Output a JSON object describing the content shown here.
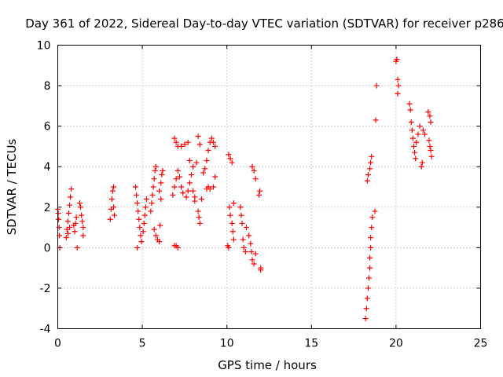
{
  "chart_data": {
    "type": "scatter",
    "title": "Day 361 of 2022, Sidereal Day-to-day VTEC variation (SDTVAR) for receiver p286",
    "xlabel": "GPS time / hours",
    "ylabel": "SDTVAR / TECUs",
    "xlim": [
      0,
      25
    ],
    "ylim": [
      -4,
      10
    ],
    "x_ticks": [
      0,
      5,
      10,
      15,
      20,
      25
    ],
    "y_ticks": [
      -4,
      -2,
      0,
      2,
      4,
      6,
      8,
      10
    ],
    "x_tick_labels": [
      "0",
      "5",
      "10",
      "15",
      "20",
      "25"
    ],
    "y_tick_labels": [
      "-4",
      "-2",
      "0",
      "2",
      "4",
      "6",
      "8",
      "10"
    ],
    "grid": true,
    "marker": "+",
    "marker_color": "#ff0000",
    "series": [
      {
        "name": "p286",
        "points": [
          [
            0.0,
            1.9
          ],
          [
            0.03,
            1.7
          ],
          [
            0.05,
            1.4
          ],
          [
            0.08,
            1.0
          ],
          [
            0.1,
            0.6
          ],
          [
            0.12,
            0.0
          ],
          [
            0.5,
            0.5
          ],
          [
            0.55,
            0.9
          ],
          [
            0.6,
            1.3
          ],
          [
            0.65,
            1.7
          ],
          [
            0.7,
            2.1
          ],
          [
            0.75,
            2.5
          ],
          [
            0.8,
            2.9
          ],
          [
            0.6,
            0.7
          ],
          [
            0.7,
            1.0
          ],
          [
            0.95,
            1.1
          ],
          [
            1.0,
            0.8
          ],
          [
            1.05,
            1.2
          ],
          [
            1.1,
            1.5
          ],
          [
            1.15,
            0.0
          ],
          [
            1.3,
            2.2
          ],
          [
            1.35,
            2.0
          ],
          [
            1.4,
            1.6
          ],
          [
            1.45,
            1.3
          ],
          [
            1.5,
            1.0
          ],
          [
            1.5,
            0.6
          ],
          [
            3.1,
            1.4
          ],
          [
            3.15,
            1.9
          ],
          [
            3.2,
            2.4
          ],
          [
            3.25,
            2.8
          ],
          [
            3.3,
            3.0
          ],
          [
            3.3,
            2.0
          ],
          [
            3.35,
            1.6
          ],
          [
            4.6,
            3.0
          ],
          [
            4.65,
            2.6
          ],
          [
            4.7,
            2.2
          ],
          [
            4.75,
            1.8
          ],
          [
            4.8,
            1.4
          ],
          [
            4.85,
            1.0
          ],
          [
            4.9,
            0.6
          ],
          [
            4.95,
            0.3
          ],
          [
            4.7,
            0.0
          ],
          [
            5.05,
            0.8
          ],
          [
            5.1,
            1.2
          ],
          [
            5.15,
            1.6
          ],
          [
            5.2,
            2.0
          ],
          [
            5.25,
            2.4
          ],
          [
            5.5,
            1.8
          ],
          [
            5.55,
            2.2
          ],
          [
            5.6,
            2.6
          ],
          [
            5.65,
            3.0
          ],
          [
            5.7,
            3.4
          ],
          [
            5.75,
            3.8
          ],
          [
            5.8,
            4.0
          ],
          [
            5.7,
            0.9
          ],
          [
            5.8,
            0.6
          ],
          [
            5.9,
            0.4
          ],
          [
            6.0,
            0.3
          ],
          [
            6.05,
            1.1
          ],
          [
            6.0,
            2.8
          ],
          [
            6.1,
            3.2
          ],
          [
            6.15,
            3.6
          ],
          [
            6.2,
            3.8
          ],
          [
            6.1,
            2.4
          ],
          [
            6.9,
            0.1
          ],
          [
            7.0,
            0.1
          ],
          [
            7.1,
            0.0
          ],
          [
            6.8,
            2.6
          ],
          [
            6.9,
            3.0
          ],
          [
            7.0,
            3.4
          ],
          [
            7.1,
            3.8
          ],
          [
            7.2,
            3.5
          ],
          [
            7.3,
            3.0
          ],
          [
            7.4,
            2.7
          ],
          [
            6.9,
            5.4
          ],
          [
            7.0,
            5.2
          ],
          [
            7.1,
            5.0
          ],
          [
            7.3,
            5.0
          ],
          [
            7.5,
            5.1
          ],
          [
            7.7,
            5.2
          ],
          [
            7.6,
            2.5
          ],
          [
            7.7,
            2.8
          ],
          [
            7.8,
            3.2
          ],
          [
            7.9,
            3.6
          ],
          [
            8.0,
            2.8
          ],
          [
            8.1,
            2.5
          ],
          [
            7.8,
            4.3
          ],
          [
            8.0,
            4.0
          ],
          [
            8.2,
            4.2
          ],
          [
            8.3,
            5.5
          ],
          [
            8.4,
            5.1
          ],
          [
            8.3,
            1.8
          ],
          [
            8.35,
            1.5
          ],
          [
            8.4,
            1.2
          ],
          [
            8.1,
            2.3
          ],
          [
            8.5,
            2.4
          ],
          [
            8.6,
            3.7
          ],
          [
            8.7,
            3.9
          ],
          [
            8.8,
            4.3
          ],
          [
            8.9,
            4.8
          ],
          [
            9.0,
            5.2
          ],
          [
            9.1,
            5.4
          ],
          [
            9.2,
            5.2
          ],
          [
            9.3,
            5.0
          ],
          [
            8.8,
            2.9
          ],
          [
            8.9,
            3.0
          ],
          [
            9.0,
            2.9
          ],
          [
            9.2,
            3.0
          ],
          [
            9.3,
            3.5
          ],
          [
            10.1,
            4.6
          ],
          [
            10.2,
            4.4
          ],
          [
            10.3,
            4.2
          ],
          [
            10.05,
            0.1
          ],
          [
            10.1,
            0.0
          ],
          [
            10.15,
            2.0
          ],
          [
            10.2,
            1.6
          ],
          [
            10.3,
            1.2
          ],
          [
            10.35,
            0.8
          ],
          [
            10.4,
            0.4
          ],
          [
            10.4,
            2.2
          ],
          [
            10.8,
            2.0
          ],
          [
            10.85,
            1.6
          ],
          [
            10.9,
            1.2
          ],
          [
            10.95,
            0.4
          ],
          [
            11.0,
            0.0
          ],
          [
            11.1,
            -0.2
          ],
          [
            11.15,
            1.0
          ],
          [
            11.3,
            0.6
          ],
          [
            11.4,
            0.2
          ],
          [
            11.45,
            -0.2
          ],
          [
            11.5,
            -0.6
          ],
          [
            11.6,
            -0.8
          ],
          [
            11.7,
            -0.3
          ],
          [
            11.5,
            4.0
          ],
          [
            11.6,
            3.8
          ],
          [
            11.7,
            3.4
          ],
          [
            11.9,
            2.6
          ],
          [
            11.95,
            2.8
          ],
          [
            12.0,
            -1.0
          ],
          [
            12.0,
            -1.1
          ],
          [
            18.2,
            -3.5
          ],
          [
            18.25,
            -3.0
          ],
          [
            18.3,
            -2.5
          ],
          [
            18.35,
            -2.0
          ],
          [
            18.4,
            -1.5
          ],
          [
            18.45,
            -1.0
          ],
          [
            18.45,
            -0.5
          ],
          [
            18.5,
            0.0
          ],
          [
            18.5,
            0.5
          ],
          [
            18.55,
            1.0
          ],
          [
            18.6,
            1.5
          ],
          [
            18.3,
            3.3
          ],
          [
            18.35,
            3.6
          ],
          [
            18.45,
            3.9
          ],
          [
            18.5,
            4.2
          ],
          [
            18.55,
            4.5
          ],
          [
            18.75,
            1.8
          ],
          [
            18.8,
            6.3
          ],
          [
            18.85,
            8.0
          ],
          [
            20.0,
            9.2
          ],
          [
            20.05,
            9.3
          ],
          [
            20.1,
            8.3
          ],
          [
            20.15,
            8.0
          ],
          [
            20.1,
            7.6
          ],
          [
            20.8,
            7.1
          ],
          [
            20.85,
            6.8
          ],
          [
            20.9,
            6.2
          ],
          [
            20.95,
            5.8
          ],
          [
            21.0,
            5.4
          ],
          [
            21.05,
            5.0
          ],
          [
            21.1,
            4.7
          ],
          [
            21.15,
            4.4
          ],
          [
            21.2,
            5.2
          ],
          [
            21.3,
            5.6
          ],
          [
            21.4,
            6.0
          ],
          [
            21.5,
            4.0
          ],
          [
            21.55,
            4.2
          ],
          [
            21.6,
            5.8
          ],
          [
            21.7,
            5.6
          ],
          [
            21.9,
            6.7
          ],
          [
            22.0,
            6.5
          ],
          [
            22.05,
            6.2
          ],
          [
            21.95,
            5.3
          ],
          [
            22.0,
            5.0
          ],
          [
            22.05,
            4.8
          ],
          [
            22.1,
            4.5
          ]
        ]
      }
    ]
  }
}
